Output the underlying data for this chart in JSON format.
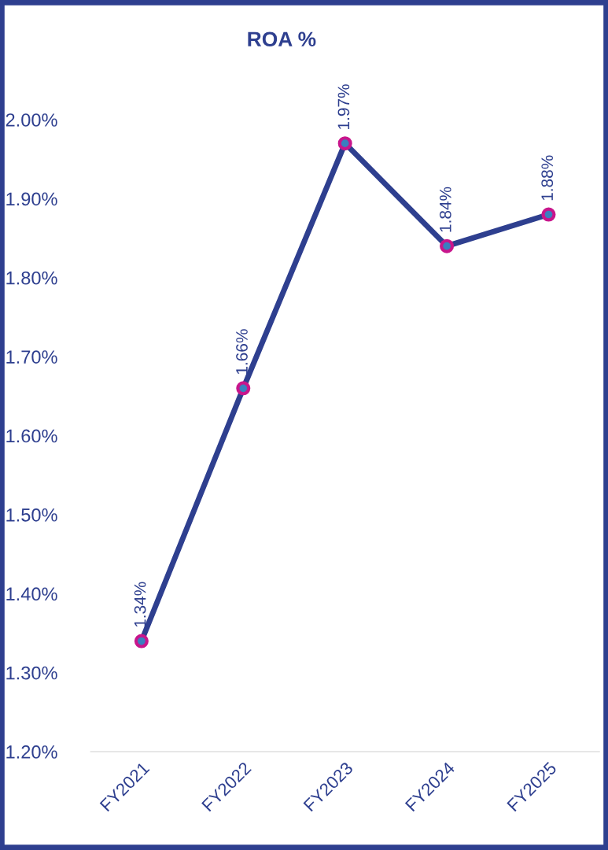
{
  "chart_data": {
    "type": "line",
    "title": "ROA %",
    "categories": [
      "FY2021",
      "FY2022",
      "FY2023",
      "FY2024",
      "FY2025"
    ],
    "series": [
      {
        "color": "#2e3f8f",
        "values": [
          1.34,
          1.66,
          1.97,
          1.84,
          1.88
        ],
        "value_labels": [
          "1.34%",
          "1.66%",
          "1.97%",
          "1.84%",
          "1.88%"
        ]
      }
    ],
    "ylim": [
      1.2,
      2.0
    ],
    "yticks": [
      {
        "value": 1.2,
        "label": "1.20%"
      },
      {
        "value": 1.3,
        "label": "1.30%"
      },
      {
        "value": 1.4,
        "label": "1.40%"
      },
      {
        "value": 1.5,
        "label": "1.50%"
      },
      {
        "value": 1.6,
        "label": "1.60%"
      },
      {
        "value": 1.7,
        "label": "1.70%"
      },
      {
        "value": 1.8,
        "label": "1.80%"
      },
      {
        "value": 1.9,
        "label": "1.90%"
      },
      {
        "value": 2.0,
        "label": "2.00%"
      }
    ],
    "marker": "circle",
    "line_style": "solid",
    "grid": false,
    "legend": false
  }
}
